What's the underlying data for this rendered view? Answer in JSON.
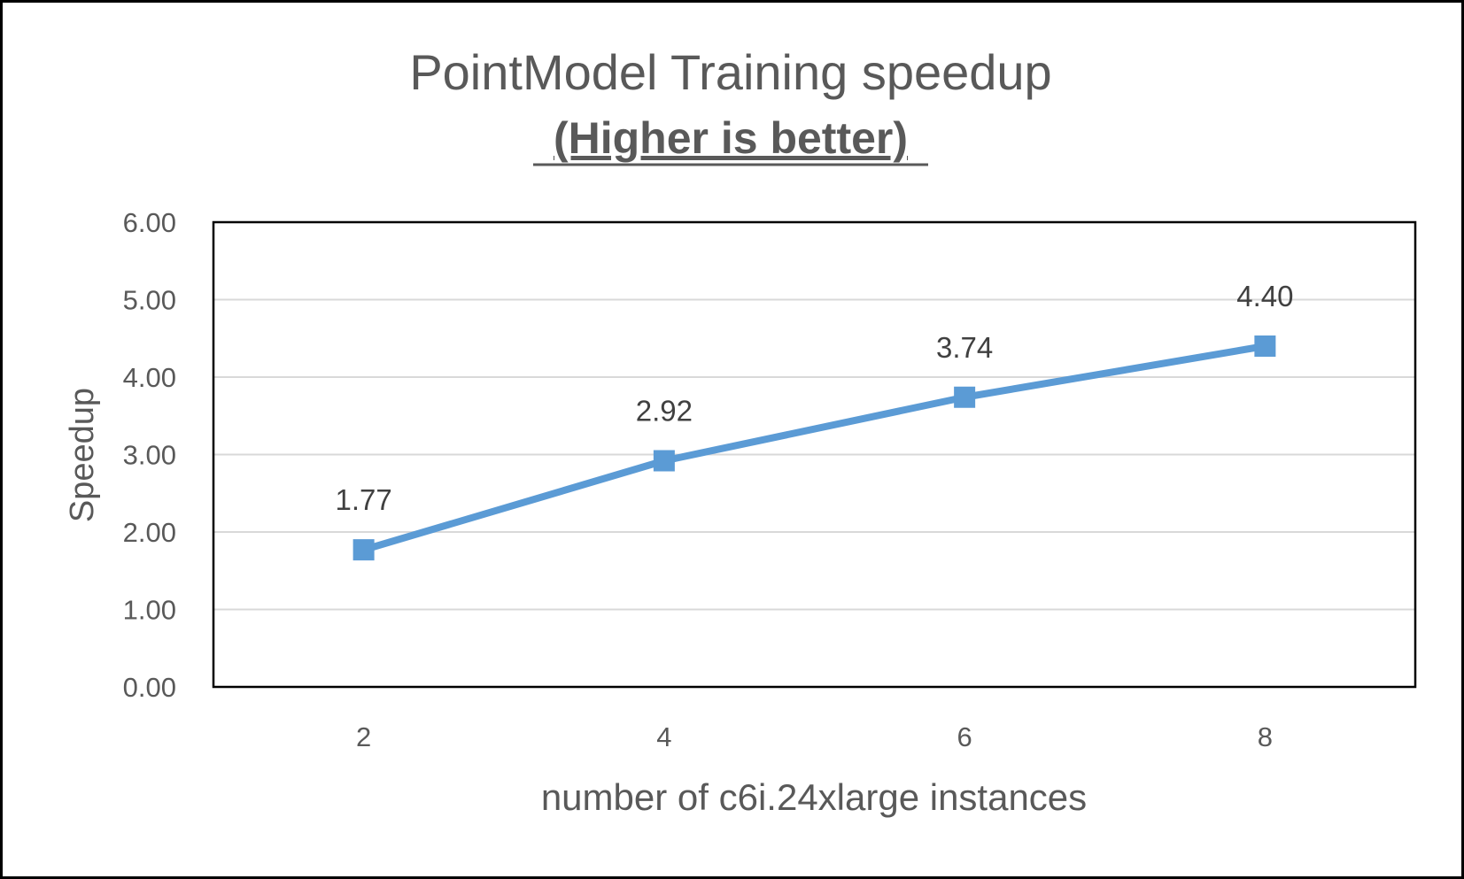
{
  "chart_data": {
    "type": "line",
    "title": "PointModel Training speedup",
    "subtitle": "(Higher is better)",
    "xlabel": "number of c6i.24xlarge instances",
    "ylabel": "Speedup",
    "categories": [
      "2",
      "4",
      "6",
      "8"
    ],
    "series": [
      {
        "name": "",
        "values": [
          1.77,
          2.92,
          3.74,
          4.4
        ],
        "labels": [
          "1.77",
          "2.92",
          "3.74",
          "4.40"
        ],
        "color": "#5B9BD5"
      }
    ],
    "ylim": [
      0,
      6
    ],
    "yticks": [
      "0.00",
      "1.00",
      "2.00",
      "3.00",
      "4.00",
      "5.00",
      "6.00"
    ],
    "grid": true,
    "legend": "none"
  },
  "colors": {
    "line": "#5B9BD5",
    "grid": "#D9D9D9",
    "text": "#595959",
    "data_label": "#404040",
    "frame": "#000000"
  }
}
